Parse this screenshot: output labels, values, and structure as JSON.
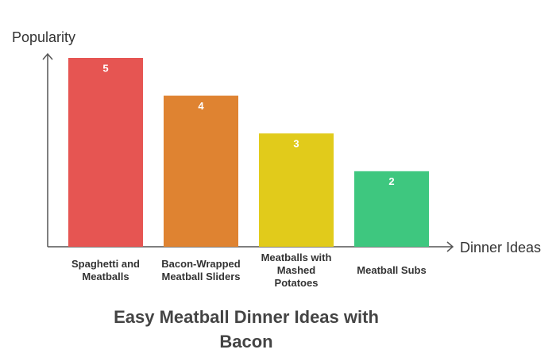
{
  "chart_data": {
    "type": "bar",
    "title": "Easy Meatball Dinner Ideas with Bacon",
    "y_label": "Popularity",
    "x_label": "Dinner Ideas",
    "categories": [
      "Spaghetti and Meatballs",
      "Bacon-Wrapped Meatball Sliders",
      "Meatballs with Mashed Potatoes",
      "Meatball Subs"
    ],
    "values": [
      5,
      4,
      3,
      2
    ],
    "colors": [
      "#e65552",
      "#df8331",
      "#e1cb1b",
      "#3ec77f"
    ],
    "ylim": [
      0,
      5
    ]
  }
}
